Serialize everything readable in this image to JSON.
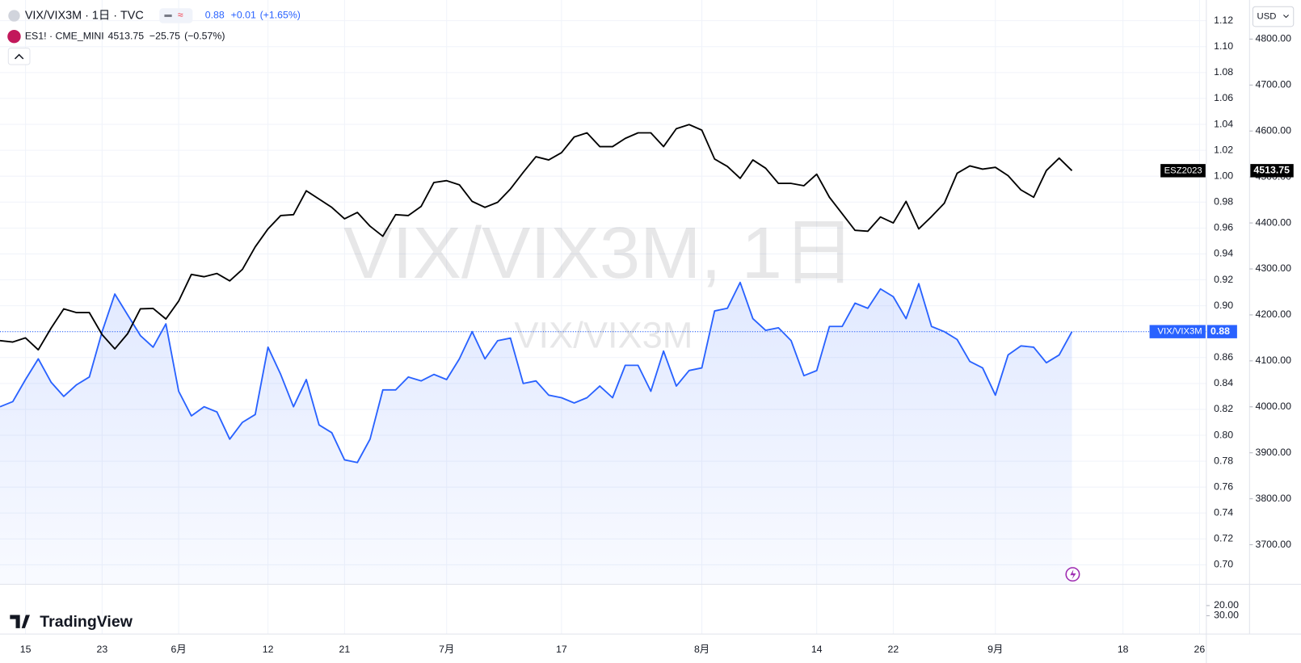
{
  "header": [
    {
      "symbol": "VIX/VIX3M · 1日 · TVC",
      "last": "0.88",
      "change": "+0.01",
      "change_pct": "(+1.65%)"
    },
    {
      "symbol": "ES1! · CME_MINI",
      "last": "4513.75",
      "change": "−25.75",
      "change_pct": "(−0.57%)"
    }
  ],
  "watermark": {
    "title": "VIX/VIX3M, 1日",
    "subtitle": "VIX/VIX3M"
  },
  "currency": "USD",
  "logo": "TradingView",
  "chart_data": {
    "type": "line",
    "categories": [
      null,
      null,
      "15",
      null,
      null,
      null,
      null,
      null,
      "23",
      null,
      null,
      null,
      null,
      null,
      "6月",
      null,
      null,
      null,
      null,
      null,
      null,
      "12",
      null,
      null,
      null,
      null,
      null,
      "21",
      null,
      null,
      null,
      null,
      null,
      null,
      null,
      "7月",
      null,
      null,
      null,
      null,
      null,
      null,
      null,
      null,
      "17",
      null,
      null,
      null,
      null,
      null,
      null,
      null,
      null,
      null,
      null,
      "8月",
      null,
      null,
      null,
      null,
      null,
      null,
      null,
      null,
      "14",
      null,
      null,
      null,
      null,
      null,
      "22",
      null,
      null,
      null,
      null,
      null,
      null,
      null,
      "9月",
      null,
      null,
      null,
      null,
      null,
      null,
      null,
      null,
      null,
      "18",
      null,
      null,
      null,
      null,
      null,
      "26"
    ],
    "series": [
      {
        "name": "VIX/VIX3M",
        "color": "#2962ff",
        "axis": "y",
        "area": true,
        "last_value_label": "0.88",
        "values": [
          0.822,
          0.826,
          0.843,
          0.859,
          0.841,
          0.83,
          0.839,
          0.845,
          0.88,
          0.909,
          0.893,
          0.877,
          0.868,
          0.886,
          0.834,
          0.815,
          0.822,
          0.818,
          0.797,
          0.81,
          0.816,
          0.868,
          0.847,
          0.822,
          0.843,
          0.808,
          0.802,
          0.781,
          0.779,
          0.797,
          0.835,
          0.835,
          0.845,
          0.842,
          0.847,
          0.843,
          0.859,
          0.88,
          0.859,
          0.873,
          0.875,
          0.84,
          0.842,
          0.831,
          0.829,
          0.825,
          0.829,
          0.838,
          0.829,
          0.854,
          0.854,
          0.834,
          0.865,
          0.838,
          0.85,
          0.852,
          0.896,
          0.898,
          0.918,
          0.89,
          0.881,
          0.883,
          0.873,
          0.846,
          0.85,
          0.884,
          0.884,
          0.902,
          0.898,
          0.913,
          0.907,
          0.89,
          0.917,
          0.884,
          0.88,
          0.874,
          0.857,
          0.852,
          0.831,
          0.862,
          0.869,
          0.868,
          0.856,
          0.862,
          0.88,
          null,
          null,
          null,
          null,
          null,
          null,
          null,
          null,
          null,
          null
        ]
      },
      {
        "name": "ESZ2023",
        "color": "#000000",
        "axis": "y2",
        "last_value_label": "4513.75",
        "values": [
          4144,
          4141,
          4150,
          4124,
          4171,
          4213,
          4205,
          4205,
          4157,
          4126,
          4159,
          4213,
          4214,
          4191,
          4230,
          4288,
          4283,
          4290,
          4274,
          4299,
          4348,
          4387,
          4416,
          4418,
          4470,
          4452,
          4434,
          4409,
          4423,
          4393,
          4371,
          4418,
          4416,
          4436,
          4488,
          4492,
          4483,
          4447,
          4434,
          4445,
          4474,
          4510,
          4544,
          4537,
          4553,
          4587,
          4596,
          4566,
          4566,
          4584,
          4596,
          4596,
          4566,
          4605,
          4614,
          4602,
          4539,
          4523,
          4497,
          4537,
          4519,
          4486,
          4486,
          4481,
          4506,
          4456,
          4420,
          4384,
          4382,
          4413,
          4400,
          4447,
          4387,
          4414,
          4443,
          4508,
          4524,
          4517,
          4521,
          4503,
          4472,
          4456,
          4514,
          4541,
          4513.75,
          null,
          null,
          null,
          null,
          null,
          null,
          null,
          null,
          null,
          null
        ]
      }
    ],
    "ylim": [
      0.685,
      1.136
    ],
    "yticks": [
      {
        "value": 0.7,
        "label": "0.70"
      },
      {
        "value": 0.72,
        "label": "0.72"
      },
      {
        "value": 0.74,
        "label": "0.74"
      },
      {
        "value": 0.76,
        "label": "0.76"
      },
      {
        "value": 0.78,
        "label": "0.78"
      },
      {
        "value": 0.8,
        "label": "0.80"
      },
      {
        "value": 0.82,
        "label": "0.82"
      },
      {
        "value": 0.84,
        "label": "0.84"
      },
      {
        "value": 0.86,
        "label": "0.86"
      },
      {
        "value": 0.88,
        "label": "0.88"
      },
      {
        "value": 0.9,
        "label": "0.90"
      },
      {
        "value": 0.92,
        "label": "0.92"
      },
      {
        "value": 0.94,
        "label": "0.94"
      },
      {
        "value": 0.96,
        "label": "0.96"
      },
      {
        "value": 0.98,
        "label": "0.98"
      },
      {
        "value": 1.0,
        "label": "1.00"
      },
      {
        "value": 1.02,
        "label": "1.02"
      },
      {
        "value": 1.04,
        "label": "1.04"
      },
      {
        "value": 1.06,
        "label": "1.06"
      },
      {
        "value": 1.08,
        "label": "1.08"
      },
      {
        "value": 1.1,
        "label": "1.10"
      },
      {
        "value": 1.12,
        "label": "1.12"
      }
    ],
    "y2lim": [
      3614,
      4885
    ],
    "y2ticks": [
      {
        "value": 3700,
        "label": "3700.00"
      },
      {
        "value": 3800,
        "label": "3800.00"
      },
      {
        "value": 3900,
        "label": "3900.00"
      },
      {
        "value": 4000,
        "label": "4000.00"
      },
      {
        "value": 4100,
        "label": "4100.00"
      },
      {
        "value": 4200,
        "label": "4200.00"
      },
      {
        "value": 4300,
        "label": "4300.00"
      },
      {
        "value": 4400,
        "label": "4400.00"
      },
      {
        "value": 4500,
        "label": "4500.00"
      },
      {
        "value": 4600,
        "label": "4600.00"
      },
      {
        "value": 4700,
        "label": "4700.00"
      },
      {
        "value": 4800,
        "label": "4800.00"
      }
    ],
    "y3lim": [
      48,
      -1
    ],
    "y3ticks": [
      {
        "value": 20,
        "label": "20.00"
      },
      {
        "value": 30,
        "label": "30.00"
      }
    ],
    "grid": true
  }
}
